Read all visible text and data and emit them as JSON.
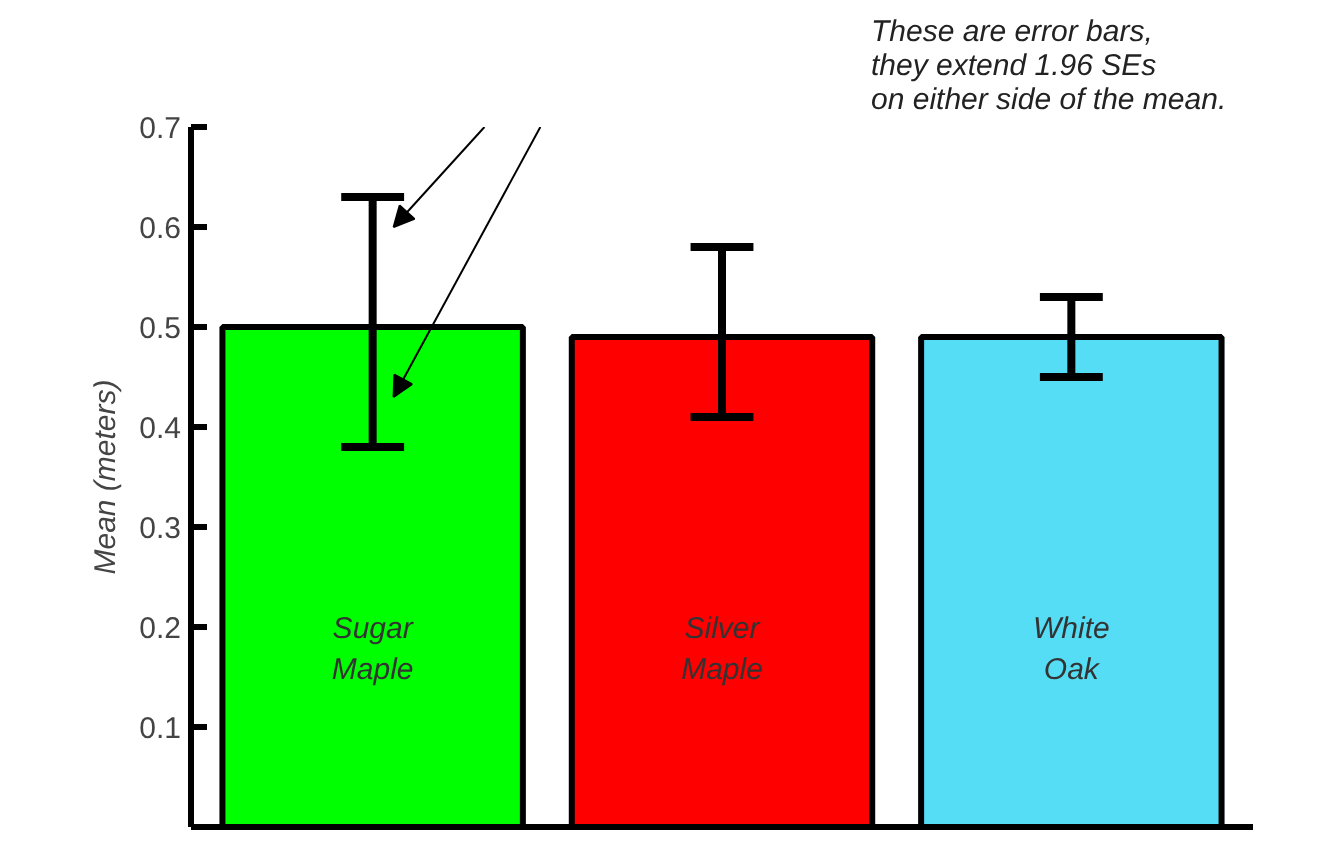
{
  "chart_data": {
    "type": "bar",
    "ylabel": "Mean (meters)",
    "categories": [
      "Sugar\nMaple",
      "Silver\nMaple",
      "White\nOak"
    ],
    "values": [
      0.5,
      0.49,
      0.49
    ],
    "colors": [
      "#00ff00",
      "#ff0000",
      "#55ddf5"
    ],
    "errors": [
      [
        0.38,
        0.63
      ],
      [
        0.41,
        0.58
      ],
      [
        0.45,
        0.53
      ]
    ],
    "ylim": [
      0,
      0.7
    ],
    "yticks": [
      0.1,
      0.2,
      0.3,
      0.4,
      0.5,
      0.6,
      0.7
    ],
    "tick_labels": "y",
    "grid": false,
    "annotations": [
      "These are error bars,\nthey extend 1.96 SEs\non either side of the mean."
    ]
  }
}
